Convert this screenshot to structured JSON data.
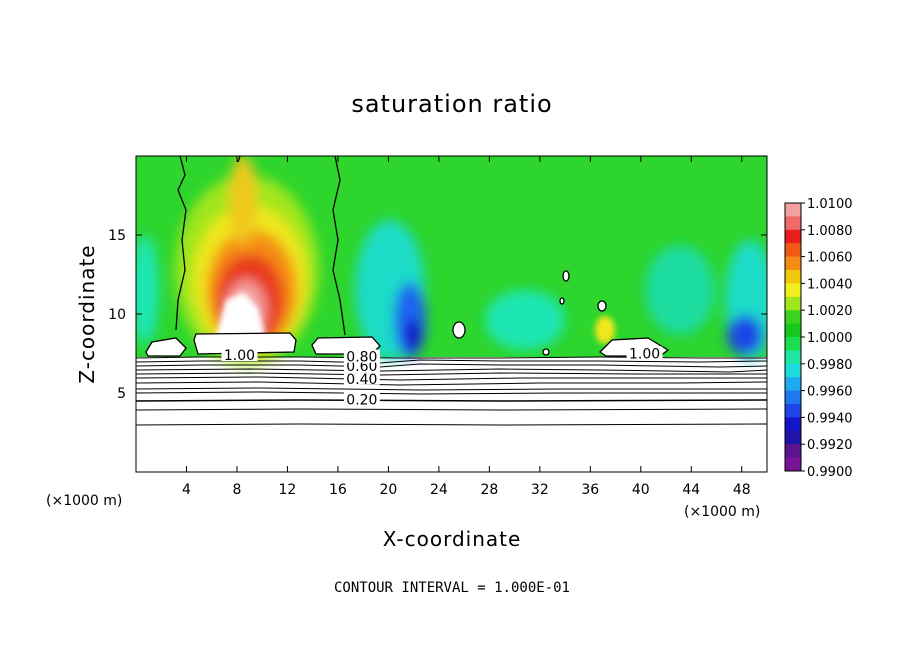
{
  "chart_data": {
    "type": "heatmap",
    "title": "saturation ratio",
    "xlabel": "X-coordinate",
    "ylabel": "Z-coordinate",
    "x_unit_label": "(×1000 m)",
    "x_unit_label_right": "(×1000 m)",
    "xlim": [
      0,
      50
    ],
    "ylim": [
      0,
      20
    ],
    "x_ticks": [
      4,
      8,
      12,
      16,
      20,
      24,
      28,
      32,
      36,
      40,
      44,
      48
    ],
    "y_ticks": [
      5,
      10,
      15
    ],
    "footer": "CONTOUR INTERVAL = 1.000E-01",
    "colorbar": {
      "labels": [
        "1.0100",
        "1.0080",
        "1.0060",
        "1.0040",
        "1.0020",
        "1.0000",
        "0.9980",
        "0.9960",
        "0.9940",
        "0.9920",
        "0.9900"
      ],
      "colors": [
        "#f4a0a0",
        "#f06a6a",
        "#e81e1e",
        "#f05a14",
        "#f58c14",
        "#f2c80a",
        "#f0f01e",
        "#a0e61e",
        "#3cd21e",
        "#14c81e",
        "#1edc50",
        "#1ee6a0",
        "#1edcdc",
        "#1eaaf0",
        "#1e78f0",
        "#1e46e6",
        "#1414c8",
        "#1e14aa",
        "#5a148c",
        "#7a1496"
      ]
    },
    "contour_labels": [
      {
        "text": "0.20",
        "x": 17.9,
        "z": 4.6
      },
      {
        "text": "0.40",
        "x": 17.9,
        "z": 5.9
      },
      {
        "text": "0.60",
        "x": 17.9,
        "z": 6.7
      },
      {
        "text": "0.80",
        "x": 17.9,
        "z": 7.3
      },
      {
        "text": "1.00",
        "x": 8.2,
        "z": 7.4
      },
      {
        "text": "1.00",
        "x": 40.3,
        "z": 7.5
      }
    ]
  }
}
